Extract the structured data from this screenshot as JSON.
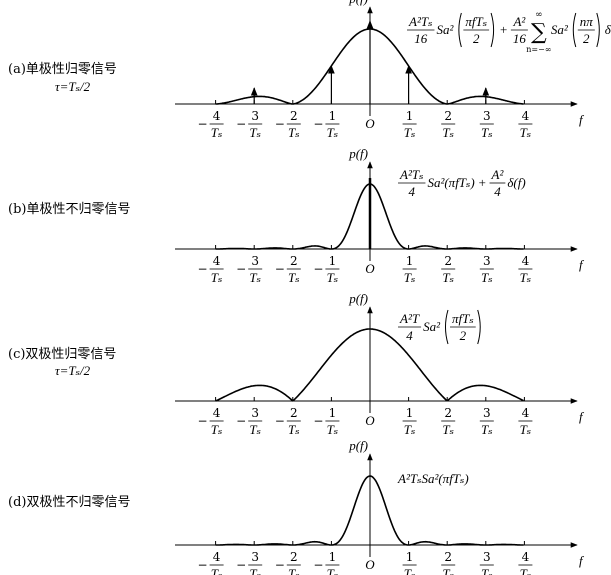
{
  "panels": [
    {
      "label": "(a)单极性归零信号",
      "sublabel": "τ=Tₛ/2",
      "y_axis": "p(f)",
      "x_axis": "f",
      "origin": "O",
      "ticks": [
        {
          "sign": "−",
          "num": "4",
          "den": "Tₛ"
        },
        {
          "sign": "−",
          "num": "3",
          "den": "Tₛ"
        },
        {
          "sign": "−",
          "num": "2",
          "den": "Tₛ"
        },
        {
          "sign": "−",
          "num": "1",
          "den": "Tₛ"
        },
        {
          "num": "1",
          "den": "Tₛ"
        },
        {
          "num": "2",
          "den": "Tₛ"
        },
        {
          "num": "3",
          "den": "Tₛ"
        },
        {
          "num": "4",
          "den": "Tₛ"
        }
      ],
      "formula": [
        {
          "num": "A²Tₛ",
          "den": "16"
        },
        {
          "text": "Sa²"
        },
        {
          "num": "πfTₛ",
          "den": "2",
          "paren": true
        },
        {
          "text": "+"
        },
        {
          "num": "A²",
          "den": "16"
        },
        {
          "sum": "∑",
          "top": "∞",
          "bottom": "n=−∞"
        },
        {
          "text": "Sa²"
        },
        {
          "num": "nπ",
          "den": "2",
          "paren": true
        },
        {
          "text": "δ(f−nfₛ)"
        }
      ]
    },
    {
      "label": "(b)单极性不归零信号",
      "y_axis": "p(f)",
      "x_axis": "f",
      "origin": "O",
      "ticks": [
        {
          "sign": "−",
          "num": "4",
          "den": "Tₛ"
        },
        {
          "sign": "−",
          "num": "3",
          "den": "Tₛ"
        },
        {
          "sign": "−",
          "num": "2",
          "den": "Tₛ"
        },
        {
          "sign": "−",
          "num": "1",
          "den": "Tₛ"
        },
        {
          "num": "1",
          "den": "Tₛ"
        },
        {
          "num": "2",
          "den": "Tₛ"
        },
        {
          "num": "3",
          "den": "Tₛ"
        },
        {
          "num": "4",
          "den": "Tₛ"
        }
      ],
      "formula": [
        {
          "num": "A²Tₛ",
          "den": "4"
        },
        {
          "text": "Sa²(πfTₛ)"
        },
        {
          "text": "+"
        },
        {
          "num": "A²",
          "den": "4"
        },
        {
          "text": "δ(f)"
        }
      ]
    },
    {
      "label": "(c)双极性归零信号",
      "sublabel": "τ=Tₛ/2",
      "y_axis": "p(f)",
      "x_axis": "f",
      "origin": "O",
      "ticks": [
        {
          "sign": "−",
          "num": "4",
          "den": "Tₛ"
        },
        {
          "sign": "−",
          "num": "3",
          "den": "Tₛ"
        },
        {
          "sign": "−",
          "num": "2",
          "den": "Tₛ"
        },
        {
          "sign": "−",
          "num": "1",
          "den": "Tₛ"
        },
        {
          "num": "1",
          "den": "Tₛ"
        },
        {
          "num": "2",
          "den": "Tₛ"
        },
        {
          "num": "3",
          "den": "Tₛ"
        },
        {
          "num": "4",
          "den": "Tₛ"
        }
      ],
      "formula": [
        {
          "num": "A²T",
          "den": "4"
        },
        {
          "text": "Sa²"
        },
        {
          "num": "πfTₛ",
          "den": "2",
          "paren": true
        }
      ]
    },
    {
      "label": "(d)双极性不归零信号",
      "y_axis": "p(f)",
      "x_axis": "f",
      "origin": "O",
      "ticks": [
        {
          "sign": "−",
          "num": "4",
          "den": "Tₛ"
        },
        {
          "sign": "−",
          "num": "3",
          "den": "Tₛ"
        },
        {
          "sign": "−",
          "num": "2",
          "den": "Tₛ"
        },
        {
          "sign": "−",
          "num": "1",
          "den": "Tₛ"
        },
        {
          "num": "1",
          "den": "Tₛ"
        },
        {
          "num": "2",
          "den": "Tₛ"
        },
        {
          "num": "3",
          "den": "Tₛ"
        },
        {
          "num": "4",
          "den": "Tₛ"
        }
      ],
      "formula": [
        {
          "text": "A²TₛSa²(πfTₛ)"
        }
      ]
    }
  ]
}
